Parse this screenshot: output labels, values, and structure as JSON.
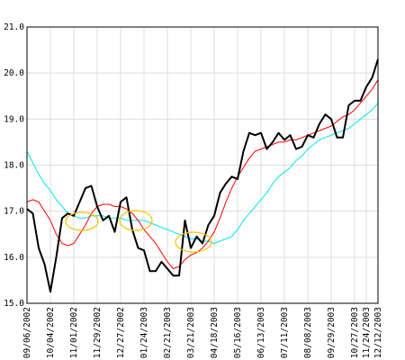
{
  "chart_data": {
    "type": "line",
    "categories": [
      "09/06/2002",
      null,
      null,
      null,
      "10/04/2002",
      null,
      null,
      null,
      "11/01/2002",
      null,
      null,
      null,
      "11/29/2002",
      null,
      null,
      null,
      "12/27/2002",
      null,
      null,
      null,
      "01/24/2003",
      null,
      null,
      null,
      "02/21/2003",
      null,
      null,
      null,
      "03/21/2003",
      null,
      null,
      null,
      "04/18/2003",
      null,
      null,
      null,
      "05/16/2003",
      null,
      null,
      null,
      "06/13/2003",
      null,
      null,
      null,
      "07/11/2003",
      null,
      null,
      null,
      "08/08/2003",
      null,
      null,
      null,
      "09/29/2003",
      null,
      null,
      null,
      "10/27/2003",
      null,
      "11/24/2003",
      null,
      "12/12/2003"
    ],
    "series": [
      {
        "color": "#00e5ee",
        "values": [
          18.3,
          18.05,
          17.8,
          17.6,
          17.45,
          17.25,
          17.1,
          16.95,
          16.9,
          16.85,
          16.85,
          16.9,
          16.9,
          16.9,
          16.85,
          16.85,
          16.85,
          16.8,
          16.8,
          16.8,
          16.8,
          16.75,
          16.7,
          16.65,
          16.6,
          16.55,
          16.5,
          16.45,
          16.4,
          16.4,
          16.35,
          16.35,
          16.3,
          16.35,
          16.4,
          16.45,
          16.6,
          16.8,
          16.95,
          17.1,
          17.25,
          17.4,
          17.6,
          17.75,
          17.85,
          17.95,
          18.1,
          18.2,
          18.35,
          18.45,
          18.55,
          18.6,
          18.65,
          18.7,
          18.75,
          18.8,
          18.9,
          19.0,
          19.1,
          19.2,
          19.35
        ]
      },
      {
        "color": "#ff0000",
        "values": [
          17.2,
          17.25,
          17.2,
          17.0,
          16.8,
          16.5,
          16.3,
          16.25,
          16.3,
          16.5,
          16.7,
          16.95,
          17.1,
          17.15,
          17.15,
          17.1,
          17.1,
          17.05,
          16.95,
          16.8,
          16.6,
          16.45,
          16.3,
          16.1,
          15.9,
          15.75,
          15.8,
          15.95,
          16.05,
          16.1,
          16.2,
          16.35,
          16.55,
          16.85,
          17.2,
          17.5,
          17.75,
          17.95,
          18.15,
          18.3,
          18.35,
          18.4,
          18.45,
          18.5,
          18.5,
          18.55,
          18.55,
          18.6,
          18.65,
          18.7,
          18.75,
          18.8,
          18.85,
          18.95,
          19.05,
          19.1,
          19.2,
          19.35,
          19.5,
          19.65,
          19.85
        ]
      },
      {
        "color": "#000000",
        "values": [
          17.05,
          16.95,
          16.2,
          15.85,
          15.25,
          16.0,
          16.85,
          16.95,
          16.9,
          17.2,
          17.5,
          17.55,
          17.1,
          16.8,
          16.9,
          16.55,
          17.2,
          17.3,
          16.6,
          16.2,
          16.15,
          15.7,
          15.7,
          15.9,
          15.75,
          15.6,
          15.6,
          16.8,
          16.2,
          16.45,
          16.3,
          16.7,
          16.9,
          17.4,
          17.6,
          17.75,
          17.7,
          18.3,
          18.7,
          18.65,
          18.7,
          18.35,
          18.5,
          18.7,
          18.55,
          18.65,
          18.35,
          18.4,
          18.65,
          18.6,
          18.9,
          19.1,
          19.0,
          18.6,
          18.6,
          19.3,
          19.4,
          19.4,
          19.7,
          19.9,
          20.3
        ]
      }
    ],
    "ylim": [
      15,
      21
    ],
    "yticks": [
      {
        "value": 15,
        "label": "15.0"
      },
      {
        "value": 16,
        "label": "16.0"
      },
      {
        "value": 17,
        "label": "17.0"
      },
      {
        "value": 18,
        "label": "18.0"
      },
      {
        "value": 19,
        "label": "19.0"
      },
      {
        "value": 20,
        "label": "20.0"
      },
      {
        "value": 21,
        "label": "21.0"
      }
    ],
    "grid": true
  }
}
